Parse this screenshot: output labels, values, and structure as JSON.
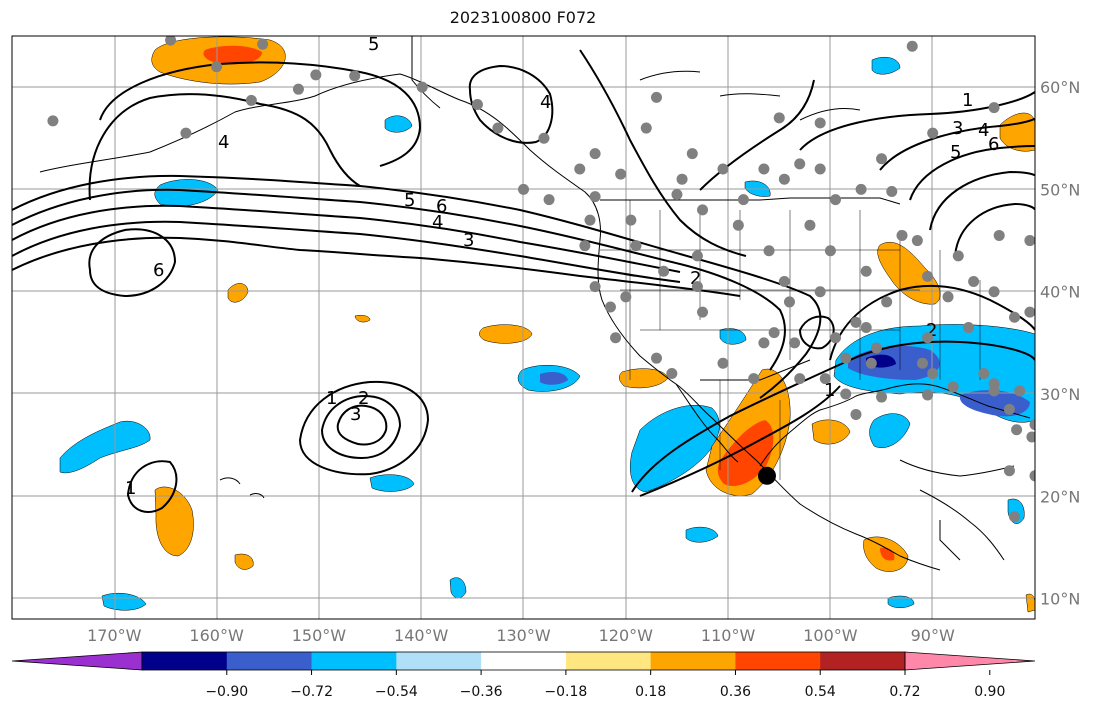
{
  "title": "2023100800 F072",
  "map": {
    "extent_lon": [
      -180,
      -80
    ],
    "extent_lat": [
      8,
      65
    ],
    "lon_ticks": [
      {
        "value": -170,
        "label": "170°W"
      },
      {
        "value": -160,
        "label": "160°W"
      },
      {
        "value": -150,
        "label": "150°W"
      },
      {
        "value": -140,
        "label": "140°W"
      },
      {
        "value": -130,
        "label": "130°W"
      },
      {
        "value": -120,
        "label": "120°W"
      },
      {
        "value": -110,
        "label": "110°W"
      },
      {
        "value": -100,
        "label": "100°W"
      },
      {
        "value": -90,
        "label": "90°W"
      }
    ],
    "lat_ticks": [
      {
        "value": 60,
        "label": "60°N"
      },
      {
        "value": 50,
        "label": "50°N"
      },
      {
        "value": 40,
        "label": "40°N"
      },
      {
        "value": 30,
        "label": "30°N"
      },
      {
        "value": 20,
        "label": "20°N"
      },
      {
        "value": 10,
        "label": "10°N"
      }
    ],
    "marker": {
      "lon": -106.2,
      "lat": 22.0,
      "color": "#000000"
    },
    "station_color": "#808080"
  },
  "colorbar": {
    "ticks": [
      "−0.90",
      "−0.72",
      "−0.54",
      "−0.36",
      "−0.18",
      "0.18",
      "0.36",
      "0.54",
      "0.72",
      "0.90"
    ],
    "colors": [
      "#9b30d0",
      "#00008b",
      "#3a5fcd",
      "#00bfff",
      "#b0e0f8",
      "#ffffff",
      "#ffe680",
      "#ffa500",
      "#ff4500",
      "#b22222",
      "#ff88aa"
    ]
  },
  "contour_labels": [
    "1",
    "2",
    "3",
    "4",
    "5",
    "6"
  ]
}
